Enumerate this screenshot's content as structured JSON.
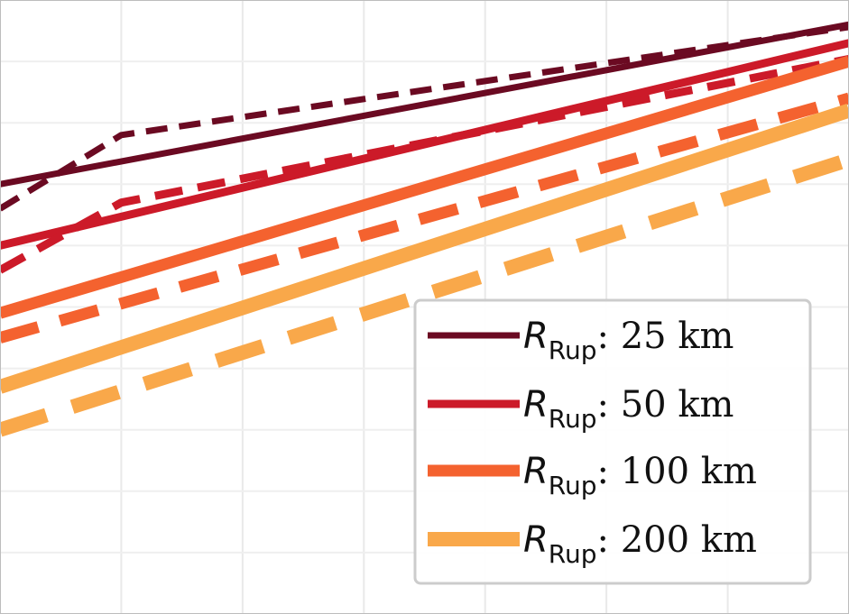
{
  "chart_data": {
    "type": "line",
    "title": "",
    "xlabel": "",
    "ylabel": "",
    "xlim": [
      0,
      7
    ],
    "ylim": [
      0,
      5
    ],
    "grid": true,
    "legend_position": "bottom-right",
    "series": [
      {
        "name": "R_Rup: 25 km",
        "color": "#6b0a22",
        "width": 7,
        "legend": {
          "symbol": "R",
          "sub": "Rup",
          "rest": ": 25 km"
        },
        "solid": {
          "x": [
            0,
            7
          ],
          "y": [
            3.5,
            4.8
          ]
        },
        "dashed": {
          "x": [
            0,
            1,
            7
          ],
          "y": [
            3.3,
            3.9,
            4.78
          ]
        }
      },
      {
        "name": "R_Rup: 50 km",
        "color": "#cc1a29",
        "width": 9,
        "legend": {
          "symbol": "R",
          "sub": "Rup",
          "rest": ": 50 km"
        },
        "solid": {
          "x": [
            0,
            7
          ],
          "y": [
            3.0,
            4.65
          ]
        },
        "dashed": {
          "x": [
            0,
            1,
            7
          ],
          "y": [
            2.8,
            3.35,
            4.52
          ]
        }
      },
      {
        "name": "R_Rup: 100 km",
        "color": "#f4622f",
        "width": 13,
        "legend": {
          "symbol": "R",
          "sub": "Rup",
          "rest": ": 100 km"
        },
        "solid": {
          "x": [
            0,
            7
          ],
          "y": [
            2.45,
            4.5
          ]
        },
        "dashed": {
          "x": [
            0,
            7
          ],
          "y": [
            2.25,
            4.2
          ]
        }
      },
      {
        "name": "R_Rup: 200 km",
        "color": "#f9a84a",
        "width": 16,
        "legend": {
          "symbol": "R",
          "sub": "Rup",
          "rest": ": 200 km"
        },
        "solid": {
          "x": [
            0,
            7
          ],
          "y": [
            1.85,
            4.1
          ]
        },
        "dashed": {
          "x": [
            0,
            7
          ],
          "y": [
            1.5,
            3.7
          ]
        }
      }
    ]
  }
}
